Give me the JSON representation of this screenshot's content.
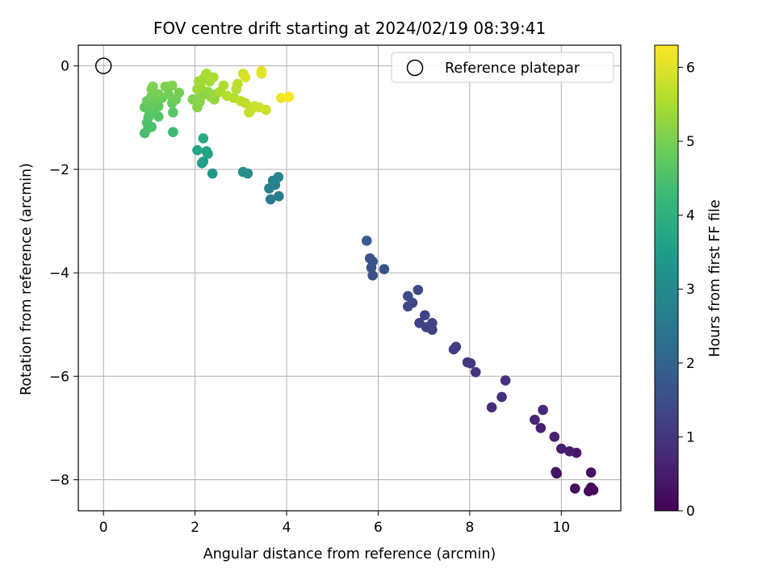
{
  "chart_data": {
    "type": "scatter",
    "title": "FOV centre drift starting at 2024/02/19 08:39:41",
    "xlabel": "Angular distance from reference (arcmin)",
    "ylabel": "Rotation from reference (arcmin)",
    "xlim": [
      -0.55,
      11.3
    ],
    "ylim": [
      -8.6,
      0.4
    ],
    "xticks": [
      0,
      2,
      4,
      6,
      8,
      10
    ],
    "yticks": [
      0,
      -2,
      -4,
      -6,
      -8
    ],
    "grid": true,
    "legend": {
      "position": "top-right",
      "entries": [
        "Reference platepar"
      ]
    },
    "reference_point": {
      "x": 0,
      "y": 0,
      "label": "Reference platepar"
    },
    "colorbar": {
      "label": "Hours from first FF file",
      "colormap": "viridis",
      "min": 0,
      "max": 6.3,
      "ticks": [
        0,
        1,
        2,
        3,
        4,
        5,
        6
      ]
    },
    "series": [
      {
        "points": [
          {
            "x": 10.7,
            "y": -8.2,
            "c": 0.05
          },
          {
            "x": 10.6,
            "y": -8.22,
            "c": 0.1
          },
          {
            "x": 10.65,
            "y": -8.15,
            "c": 0.12
          },
          {
            "x": 10.3,
            "y": -8.17,
            "c": 0.2
          },
          {
            "x": 10.65,
            "y": -7.86,
            "c": 0.25
          },
          {
            "x": 9.9,
            "y": -7.88,
            "c": 0.3
          },
          {
            "x": 9.88,
            "y": -7.85,
            "c": 0.32
          },
          {
            "x": 10.33,
            "y": -7.48,
            "c": 0.4
          },
          {
            "x": 10.18,
            "y": -7.45,
            "c": 0.45
          },
          {
            "x": 10.0,
            "y": -7.4,
            "c": 0.5
          },
          {
            "x": 9.85,
            "y": -7.17,
            "c": 0.55
          },
          {
            "x": 9.55,
            "y": -7.0,
            "c": 0.6
          },
          {
            "x": 9.42,
            "y": -6.84,
            "c": 0.65
          },
          {
            "x": 9.6,
            "y": -6.65,
            "c": 0.7
          },
          {
            "x": 8.48,
            "y": -6.6,
            "c": 0.8
          },
          {
            "x": 8.7,
            "y": -6.4,
            "c": 0.85
          },
          {
            "x": 8.78,
            "y": -6.08,
            "c": 0.9
          },
          {
            "x": 8.13,
            "y": -5.92,
            "c": 0.98
          },
          {
            "x": 8.02,
            "y": -5.75,
            "c": 1.0
          },
          {
            "x": 7.95,
            "y": -5.73,
            "c": 1.02
          },
          {
            "x": 7.7,
            "y": -5.43,
            "c": 1.1
          },
          {
            "x": 7.65,
            "y": -5.48,
            "c": 1.12
          },
          {
            "x": 7.18,
            "y": -5.1,
            "c": 1.2
          },
          {
            "x": 7.05,
            "y": -5.05,
            "c": 1.22
          },
          {
            "x": 6.9,
            "y": -4.97,
            "c": 1.25
          },
          {
            "x": 7.18,
            "y": -4.97,
            "c": 1.28
          },
          {
            "x": 7.02,
            "y": -4.82,
            "c": 1.3
          },
          {
            "x": 6.65,
            "y": -4.65,
            "c": 1.35
          },
          {
            "x": 6.75,
            "y": -4.58,
            "c": 1.38
          },
          {
            "x": 6.65,
            "y": -4.45,
            "c": 1.4
          },
          {
            "x": 6.87,
            "y": -4.33,
            "c": 1.45
          },
          {
            "x": 5.88,
            "y": -4.05,
            "c": 1.55
          },
          {
            "x": 5.85,
            "y": -3.9,
            "c": 1.6
          },
          {
            "x": 6.13,
            "y": -3.93,
            "c": 1.62
          },
          {
            "x": 5.88,
            "y": -3.78,
            "c": 1.65
          },
          {
            "x": 5.82,
            "y": -3.72,
            "c": 1.7
          },
          {
            "x": 5.75,
            "y": -3.38,
            "c": 1.8
          },
          {
            "x": 3.65,
            "y": -2.58,
            "c": 2.6
          },
          {
            "x": 3.83,
            "y": -2.52,
            "c": 2.65
          },
          {
            "x": 3.62,
            "y": -2.37,
            "c": 2.7
          },
          {
            "x": 3.75,
            "y": -2.3,
            "c": 2.75
          },
          {
            "x": 3.7,
            "y": -2.22,
            "c": 2.8
          },
          {
            "x": 3.82,
            "y": -2.15,
            "c": 2.85
          },
          {
            "x": 3.15,
            "y": -2.08,
            "c": 3.0
          },
          {
            "x": 3.05,
            "y": -2.05,
            "c": 3.05
          },
          {
            "x": 2.38,
            "y": -2.08,
            "c": 3.3
          },
          {
            "x": 2.15,
            "y": -1.88,
            "c": 3.45
          },
          {
            "x": 2.18,
            "y": -1.85,
            "c": 3.5
          },
          {
            "x": 2.28,
            "y": -1.7,
            "c": 3.6
          },
          {
            "x": 2.25,
            "y": -1.65,
            "c": 3.65
          },
          {
            "x": 2.05,
            "y": -1.63,
            "c": 3.7
          },
          {
            "x": 2.18,
            "y": -1.4,
            "c": 3.8
          },
          {
            "x": 1.52,
            "y": -1.28,
            "c": 4.3
          },
          {
            "x": 0.9,
            "y": -1.3,
            "c": 4.4
          },
          {
            "x": 1.05,
            "y": -1.18,
            "c": 4.45
          },
          {
            "x": 0.98,
            "y": -1.2,
            "c": 4.5
          },
          {
            "x": 0.95,
            "y": -1.1,
            "c": 4.52
          },
          {
            "x": 0.98,
            "y": -1.0,
            "c": 4.55
          },
          {
            "x": 1.2,
            "y": -0.98,
            "c": 4.6
          },
          {
            "x": 1.0,
            "y": -0.95,
            "c": 4.62
          },
          {
            "x": 1.52,
            "y": -0.9,
            "c": 4.65
          },
          {
            "x": 1.1,
            "y": -0.85,
            "c": 4.7
          },
          {
            "x": 0.9,
            "y": -0.8,
            "c": 4.72
          },
          {
            "x": 1.2,
            "y": -0.78,
            "c": 4.75
          },
          {
            "x": 1.05,
            "y": -0.75,
            "c": 4.78
          },
          {
            "x": 1.5,
            "y": -0.72,
            "c": 4.8
          },
          {
            "x": 0.95,
            "y": -0.68,
            "c": 4.82
          },
          {
            "x": 1.15,
            "y": -0.65,
            "c": 4.85
          },
          {
            "x": 1.28,
            "y": -0.62,
            "c": 4.88
          },
          {
            "x": 1.58,
            "y": -0.65,
            "c": 4.9
          },
          {
            "x": 1.05,
            "y": -0.58,
            "c": 4.92
          },
          {
            "x": 1.2,
            "y": -0.55,
            "c": 4.95
          },
          {
            "x": 1.42,
            "y": -0.55,
            "c": 4.97
          },
          {
            "x": 1.65,
            "y": -0.52,
            "c": 5.0
          },
          {
            "x": 1.05,
            "y": -0.45,
            "c": 5.02
          },
          {
            "x": 1.08,
            "y": -0.4,
            "c": 5.05
          },
          {
            "x": 1.35,
            "y": -0.4,
            "c": 5.07
          },
          {
            "x": 1.5,
            "y": -0.38,
            "c": 5.1
          },
          {
            "x": 1.95,
            "y": -0.65,
            "c": 5.12
          },
          {
            "x": 2.05,
            "y": -0.8,
            "c": 5.15
          },
          {
            "x": 2.1,
            "y": -0.7,
            "c": 5.18
          },
          {
            "x": 2.12,
            "y": -0.6,
            "c": 5.2
          },
          {
            "x": 2.2,
            "y": -0.55,
            "c": 5.22
          },
          {
            "x": 2.28,
            "y": -0.5,
            "c": 5.25
          },
          {
            "x": 2.35,
            "y": -0.6,
            "c": 5.28
          },
          {
            "x": 2.42,
            "y": -0.65,
            "c": 5.3
          },
          {
            "x": 2.45,
            "y": -0.55,
            "c": 5.32
          },
          {
            "x": 2.05,
            "y": -0.45,
            "c": 5.35
          },
          {
            "x": 2.12,
            "y": -0.4,
            "c": 5.38
          },
          {
            "x": 2.08,
            "y": -0.3,
            "c": 5.4
          },
          {
            "x": 2.18,
            "y": -0.25,
            "c": 5.42
          },
          {
            "x": 2.32,
            "y": -0.3,
            "c": 5.45
          },
          {
            "x": 2.4,
            "y": -0.22,
            "c": 5.48
          },
          {
            "x": 2.25,
            "y": -0.15,
            "c": 5.5
          },
          {
            "x": 2.55,
            "y": -0.5,
            "c": 5.52
          },
          {
            "x": 2.62,
            "y": -0.38,
            "c": 5.55
          },
          {
            "x": 2.7,
            "y": -0.58,
            "c": 5.58
          },
          {
            "x": 2.85,
            "y": -0.62,
            "c": 5.6
          },
          {
            "x": 2.9,
            "y": -0.45,
            "c": 5.62
          },
          {
            "x": 2.93,
            "y": -0.35,
            "c": 5.65
          },
          {
            "x": 3.0,
            "y": -0.68,
            "c": 5.68
          },
          {
            "x": 3.1,
            "y": -0.72,
            "c": 5.7
          },
          {
            "x": 3.18,
            "y": -0.9,
            "c": 5.72
          },
          {
            "x": 3.22,
            "y": -0.85,
            "c": 5.75
          },
          {
            "x": 3.3,
            "y": -0.78,
            "c": 5.78
          },
          {
            "x": 3.4,
            "y": -0.8,
            "c": 5.8
          },
          {
            "x": 3.55,
            "y": -0.85,
            "c": 5.85
          },
          {
            "x": 3.05,
            "y": -0.15,
            "c": 5.9
          },
          {
            "x": 3.1,
            "y": -0.22,
            "c": 5.95
          },
          {
            "x": 3.45,
            "y": -0.15,
            "c": 6.0
          },
          {
            "x": 3.45,
            "y": -0.1,
            "c": 6.05
          },
          {
            "x": 3.88,
            "y": -0.62,
            "c": 6.15
          },
          {
            "x": 4.05,
            "y": -0.6,
            "c": 6.25
          }
        ]
      }
    ]
  }
}
